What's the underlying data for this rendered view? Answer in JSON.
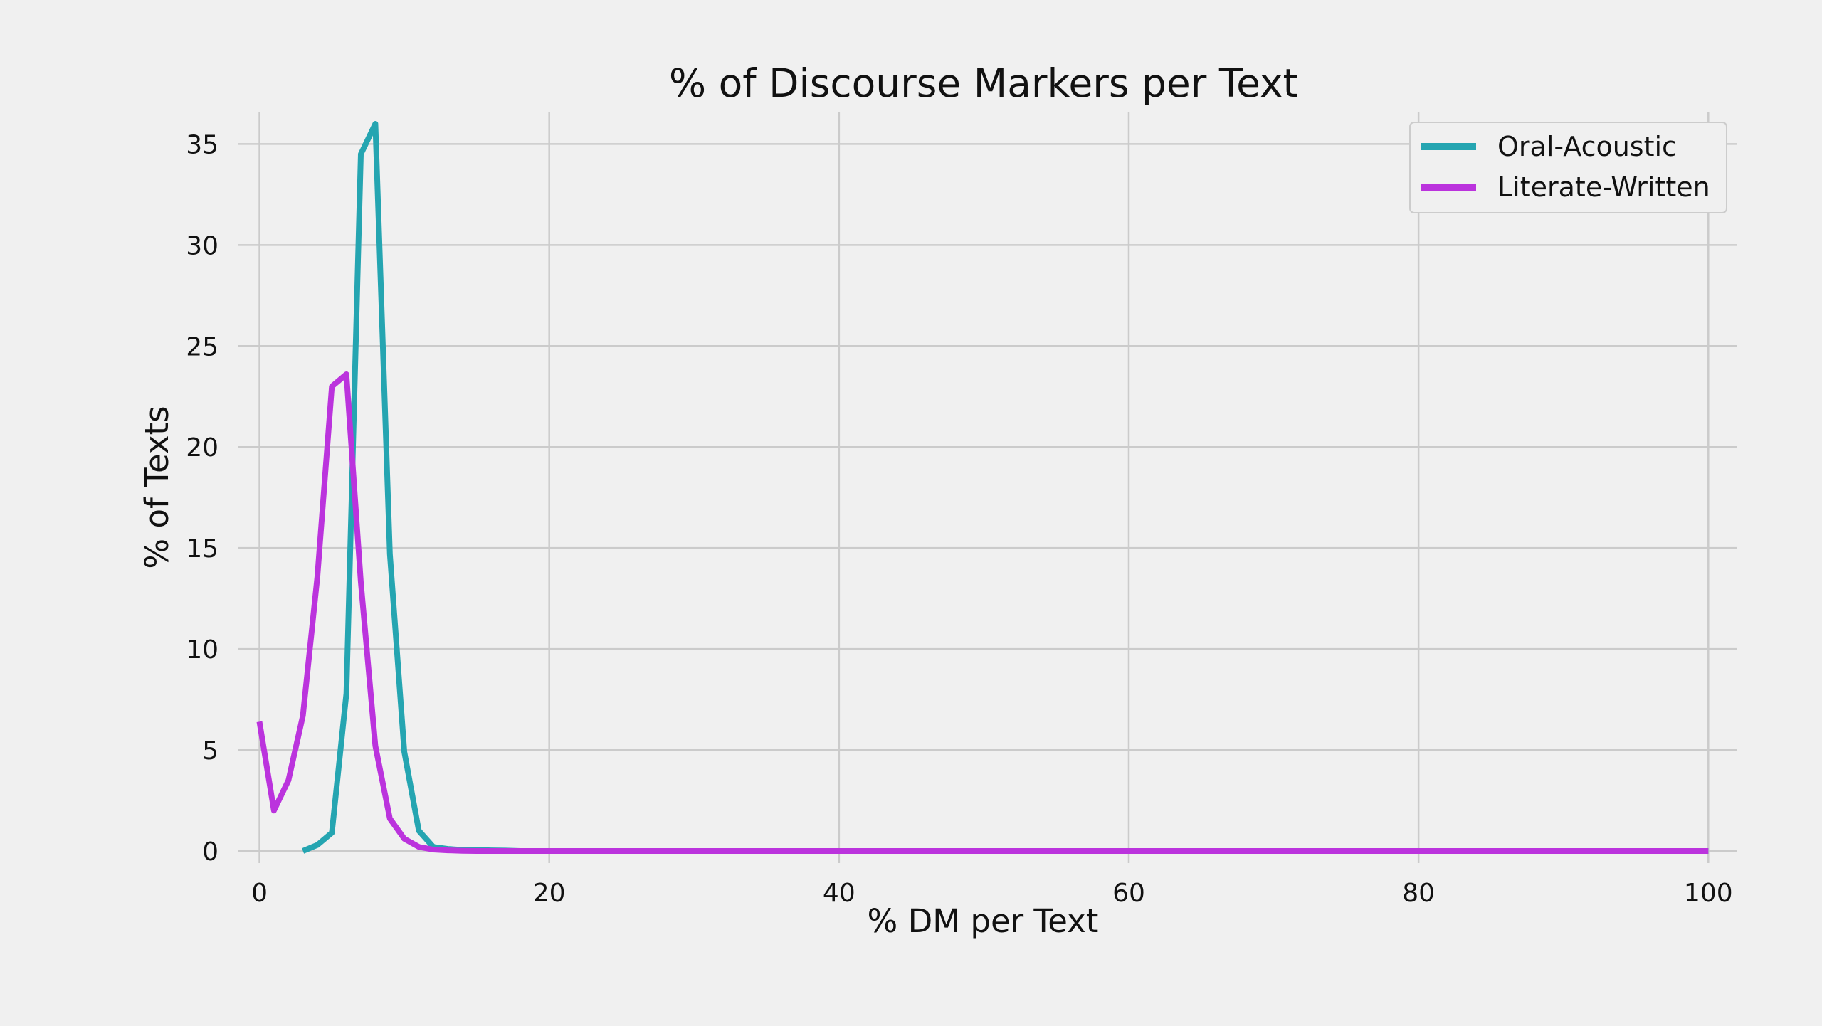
{
  "chart_data": {
    "type": "line",
    "title": "% of Discourse Markers per Text",
    "xlabel": "% DM per Text",
    "ylabel": "% of Texts",
    "xlim": [
      -1.5,
      102
    ],
    "ylim": [
      -0.6,
      36.6
    ],
    "xticks": [
      0,
      20,
      40,
      60,
      80,
      100
    ],
    "yticks": [
      0,
      5,
      10,
      15,
      20,
      25,
      30,
      35
    ],
    "grid": true,
    "legend_position": "top-right",
    "series": [
      {
        "name": "Oral-Acoustic",
        "color": "#25a5b1",
        "x": [
          3,
          4,
          5,
          6,
          7,
          8,
          9,
          10,
          11,
          12,
          13,
          14,
          15,
          16,
          17,
          18,
          19,
          20,
          30,
          40,
          50,
          60,
          70,
          80,
          90,
          100
        ],
        "y": [
          0,
          0.3,
          0.9,
          7.8,
          34.5,
          36,
          14.7,
          4.9,
          1.0,
          0.2,
          0.1,
          0.05,
          0.05,
          0.03,
          0.02,
          0,
          0,
          0,
          0,
          0,
          0,
          0,
          0,
          0,
          0,
          0
        ]
      },
      {
        "name": "Literate-Written",
        "color": "#bb33dd",
        "x": [
          0,
          1,
          2,
          3,
          4,
          5,
          6,
          7,
          8,
          9,
          10,
          11,
          12,
          13,
          14,
          15,
          16,
          17,
          18,
          19,
          20,
          30,
          40,
          50,
          60,
          70,
          80,
          90,
          100
        ],
        "y": [
          6.4,
          2.0,
          3.5,
          6.7,
          13.6,
          23.0,
          23.6,
          13.3,
          5.2,
          1.6,
          0.6,
          0.2,
          0.07,
          0.03,
          0.01,
          0,
          0,
          0,
          0,
          0,
          0,
          0,
          0,
          0,
          0,
          0,
          0,
          0,
          0
        ]
      }
    ]
  }
}
